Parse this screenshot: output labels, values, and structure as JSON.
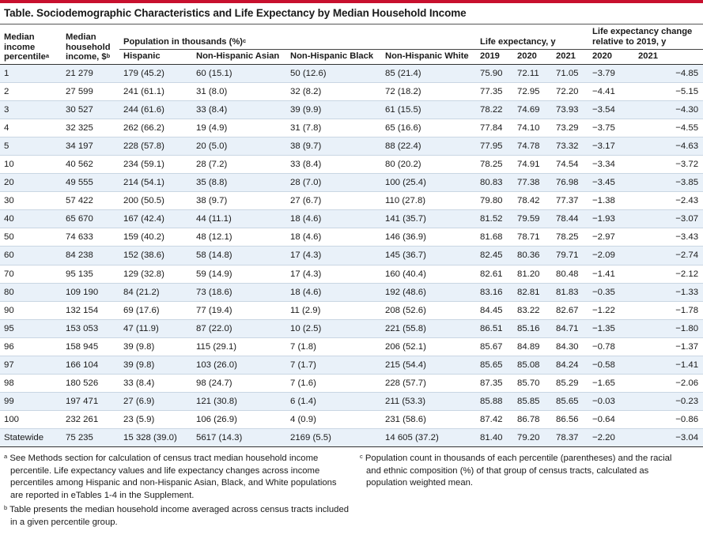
{
  "title": "Table. Sociodemographic Characteristics and Life Expectancy by Median Household Income",
  "header": {
    "col_percentile": "Median income percentile",
    "col_percentile_sup": "a",
    "col_income": "Median household income, $",
    "col_income_sup": "b",
    "group_population": "Population in thousands (%)",
    "group_population_sup": "c",
    "group_le": "Life expectancy, y",
    "group_change": "Life expectancy change relative to 2019, y",
    "hispanic": "Hispanic",
    "nh_asian": "Non-Hispanic Asian",
    "nh_black": "Non-Hispanic Black",
    "nh_white": "Non-Hispanic White",
    "y2019": "2019",
    "y2020": "2020",
    "y2021": "2021",
    "c2020": "2020",
    "c2021": "2021"
  },
  "rows": [
    [
      "1",
      "21 279",
      "179 (45.2)",
      "60 (15.1)",
      "50 (12.6)",
      "85 (21.4)",
      "75.90",
      "72.11",
      "71.05",
      "−3.79",
      "−4.85"
    ],
    [
      "2",
      "27 599",
      "241 (61.1)",
      "31 (8.0)",
      "32 (8.2)",
      "72 (18.2)",
      "77.35",
      "72.95",
      "72.20",
      "−4.41",
      "−5.15"
    ],
    [
      "3",
      "30 527",
      "244 (61.6)",
      "33 (8.4)",
      "39 (9.9)",
      "61 (15.5)",
      "78.22",
      "74.69",
      "73.93",
      "−3.54",
      "−4.30"
    ],
    [
      "4",
      "32 325",
      "262 (66.2)",
      "19 (4.9)",
      "31 (7.8)",
      "65 (16.6)",
      "77.84",
      "74.10",
      "73.29",
      "−3.75",
      "−4.55"
    ],
    [
      "5",
      "34 197",
      "228 (57.8)",
      "20 (5.0)",
      "38 (9.7)",
      "88 (22.4)",
      "77.95",
      "74.78",
      "73.32",
      "−3.17",
      "−4.63"
    ],
    [
      "10",
      "40 562",
      "234 (59.1)",
      "28 (7.2)",
      "33 (8.4)",
      "80 (20.2)",
      "78.25",
      "74.91",
      "74.54",
      "−3.34",
      "−3.72"
    ],
    [
      "20",
      "49 555",
      "214 (54.1)",
      "35 (8.8)",
      "28 (7.0)",
      "100 (25.4)",
      "80.83",
      "77.38",
      "76.98",
      "−3.45",
      "−3.85"
    ],
    [
      "30",
      "57 422",
      "200 (50.5)",
      "38 (9.7)",
      "27 (6.7)",
      "110 (27.8)",
      "79.80",
      "78.42",
      "77.37",
      "−1.38",
      "−2.43"
    ],
    [
      "40",
      "65 670",
      "167 (42.4)",
      "44 (11.1)",
      "18 (4.6)",
      "141 (35.7)",
      "81.52",
      "79.59",
      "78.44",
      "−1.93",
      "−3.07"
    ],
    [
      "50",
      "74 633",
      "159 (40.2)",
      "48 (12.1)",
      "18 (4.6)",
      "146 (36.9)",
      "81.68",
      "78.71",
      "78.25",
      "−2.97",
      "−3.43"
    ],
    [
      "60",
      "84 238",
      "152 (38.6)",
      "58 (14.8)",
      "17 (4.3)",
      "145 (36.7)",
      "82.45",
      "80.36",
      "79.71",
      "−2.09",
      "−2.74"
    ],
    [
      "70",
      "95 135",
      "129 (32.8)",
      "59 (14.9)",
      "17 (4.3)",
      "160 (40.4)",
      "82.61",
      "81.20",
      "80.48",
      "−1.41",
      "−2.12"
    ],
    [
      "80",
      "109 190",
      "84 (21.2)",
      "73 (18.6)",
      "18 (4.6)",
      "192 (48.6)",
      "83.16",
      "82.81",
      "81.83",
      "−0.35",
      "−1.33"
    ],
    [
      "90",
      "132 154",
      "69 (17.6)",
      "77 (19.4)",
      "11 (2.9)",
      "208 (52.6)",
      "84.45",
      "83.22",
      "82.67",
      "−1.22",
      "−1.78"
    ],
    [
      "95",
      "153 053",
      "47 (11.9)",
      "87 (22.0)",
      "10 (2.5)",
      "221 (55.8)",
      "86.51",
      "85.16",
      "84.71",
      "−1.35",
      "−1.80"
    ],
    [
      "96",
      "158 945",
      "39 (9.8)",
      "115 (29.1)",
      "7 (1.8)",
      "206 (52.1)",
      "85.67",
      "84.89",
      "84.30",
      "−0.78",
      "−1.37"
    ],
    [
      "97",
      "166 104",
      "39 (9.8)",
      "103 (26.0)",
      "7 (1.7)",
      "215 (54.4)",
      "85.65",
      "85.08",
      "84.24",
      "−0.58",
      "−1.41"
    ],
    [
      "98",
      "180 526",
      "33 (8.4)",
      "98 (24.7)",
      "7 (1.6)",
      "228 (57.7)",
      "87.35",
      "85.70",
      "85.29",
      "−1.65",
      "−2.06"
    ],
    [
      "99",
      "197 471",
      "27 (6.9)",
      "121 (30.8)",
      "6 (1.4)",
      "211 (53.3)",
      "85.88",
      "85.85",
      "85.65",
      "−0.03",
      "−0.23"
    ],
    [
      "100",
      "232 261",
      "23 (5.9)",
      "106 (26.9)",
      "4 (0.9)",
      "231 (58.6)",
      "87.42",
      "86.78",
      "86.56",
      "−0.64",
      "−0.86"
    ],
    [
      "Statewide",
      "75 235",
      "15 328 (39.0)",
      "5617 (14.3)",
      "2169 (5.5)",
      "14 605 (37.2)",
      "81.40",
      "79.20",
      "78.37",
      "−2.20",
      "−3.04"
    ]
  ],
  "footnotes": {
    "a_mark": "a",
    "a": "See Methods section for calculation of census tract median household income percentile. Life expectancy values and life expectancy changes across income percentiles among Hispanic and non-Hispanic Asian, Black, and White populations are reported in eTables 1-4 in the Supplement.",
    "b_mark": "b",
    "b": "Table presents the median household income averaged across census tracts included in a given percentile group.",
    "c_mark": "c",
    "c": "Population count in thousands of each percentile (parentheses) and the racial and ethnic composition (%) of that group of census tracts, calculated as population weighted mean."
  },
  "colors": {
    "accent_rule": "#c8102e",
    "band": "#e9f1f9"
  }
}
